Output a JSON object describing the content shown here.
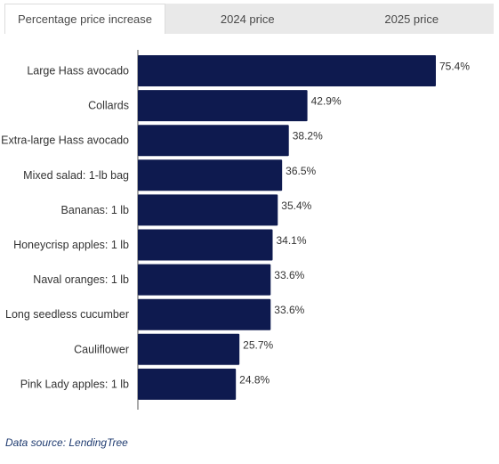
{
  "tabs": [
    {
      "label": "Percentage price increase",
      "active": true
    },
    {
      "label": "2024 price",
      "active": false
    },
    {
      "label": "2025 price",
      "active": false
    }
  ],
  "source": "Data source: LendingTree",
  "colors": {
    "bar": "#0e1a4f",
    "axis": "#555555"
  },
  "chart_data": {
    "type": "bar",
    "orientation": "horizontal",
    "categories": [
      "Large Hass avocado",
      "Collards",
      "Extra-large Hass avocado",
      "Mixed salad: 1-lb bag",
      "Bananas: 1 lb",
      "Honeycrisp apples: 1 lb",
      "Naval oranges: 1 lb",
      "Long seedless cucumber",
      "Cauliflower",
      "Pink Lady apples: 1 lb"
    ],
    "values": [
      75.4,
      42.9,
      38.2,
      36.5,
      35.4,
      34.1,
      33.6,
      33.6,
      25.7,
      24.8
    ],
    "value_labels": [
      "75.4%",
      "42.9%",
      "38.2%",
      "36.5%",
      "35.4%",
      "34.1%",
      "33.6%",
      "33.6%",
      "25.7%",
      "24.8%"
    ],
    "xlim": [
      0,
      75.4
    ],
    "grid": false
  }
}
